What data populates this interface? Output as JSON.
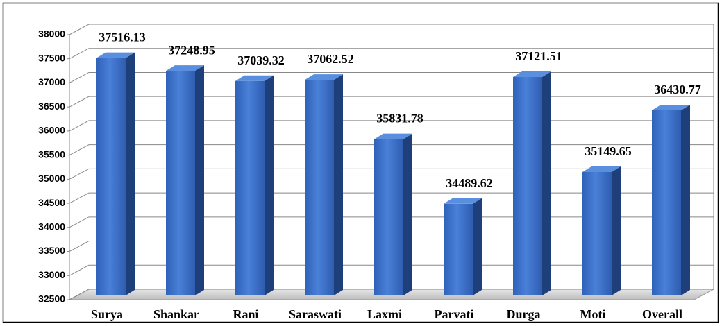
{
  "chart_data": {
    "type": "bar",
    "categories": [
      "Surya",
      "Shankar",
      "Rani",
      "Saraswati",
      "Laxmi",
      "Parvati",
      "Durga",
      "Moti",
      "Overall"
    ],
    "values": [
      37516.13,
      37248.95,
      37039.32,
      37062.52,
      35831.78,
      34489.62,
      37121.51,
      35149.65,
      36430.77
    ],
    "color": "#3a6fc9",
    "ylim": [
      32500,
      38000
    ],
    "yticks": [
      32500,
      33000,
      33500,
      34000,
      34500,
      35000,
      35500,
      36000,
      36500,
      37000,
      37500,
      38000
    ],
    "grid": true
  }
}
